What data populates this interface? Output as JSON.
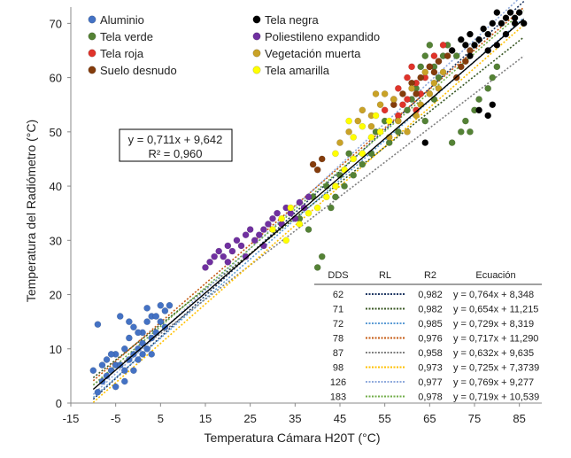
{
  "chart_data": {
    "type": "scatter",
    "xlabel": "Temperatura Cámara H20T (°C)",
    "ylabel": "Temperatura del Radiómetro (°C)",
    "xlim": [
      -15,
      90
    ],
    "ylim": [
      0,
      73
    ],
    "xticks": [
      -15,
      -5,
      5,
      15,
      25,
      35,
      45,
      55,
      65,
      75,
      85
    ],
    "yticks": [
      0,
      10,
      20,
      30,
      40,
      50,
      60,
      70
    ],
    "grid": false,
    "legend_position": "top-left",
    "fit_box": {
      "equation": "y = 0,711x + 9,642",
      "r2": "R² = 0,960",
      "slope": 0.711,
      "intercept": 9.642
    },
    "series": [
      {
        "name": "Aluminio",
        "color": "#4472c4",
        "points": [
          [
            -10,
            6
          ],
          [
            -9,
            14.5
          ],
          [
            -9,
            2
          ],
          [
            -8,
            4
          ],
          [
            -7,
            5
          ],
          [
            -6,
            6
          ],
          [
            -5,
            7
          ],
          [
            -5,
            9
          ],
          [
            -4,
            16
          ],
          [
            -4,
            7
          ],
          [
            -3,
            6
          ],
          [
            -3,
            10
          ],
          [
            -2,
            8
          ],
          [
            -2,
            12
          ],
          [
            -1,
            9
          ],
          [
            -1,
            14
          ],
          [
            0,
            8
          ],
          [
            0,
            10
          ],
          [
            1,
            11
          ],
          [
            1,
            13
          ],
          [
            2,
            15
          ],
          [
            2,
            17.5
          ],
          [
            3,
            12
          ],
          [
            3,
            16
          ],
          [
            4,
            13
          ],
          [
            5,
            15
          ],
          [
            5,
            18
          ],
          [
            6,
            17
          ],
          [
            7,
            18
          ],
          [
            -6,
            9
          ],
          [
            -7,
            8
          ],
          [
            -8,
            7
          ],
          [
            -2,
            15
          ],
          [
            0,
            13
          ],
          [
            1,
            9
          ],
          [
            4,
            16
          ],
          [
            6,
            14
          ],
          [
            -3,
            4
          ],
          [
            -5,
            3
          ],
          [
            -1,
            6
          ],
          [
            2,
            10
          ],
          [
            3,
            9
          ]
        ]
      },
      {
        "name": "Tela verde",
        "color": "#548235",
        "points": [
          [
            36,
            34
          ],
          [
            38,
            32
          ],
          [
            40,
            25
          ],
          [
            41,
            27
          ],
          [
            43,
            36
          ],
          [
            44,
            38
          ],
          [
            46,
            40
          ],
          [
            48,
            42
          ],
          [
            50,
            44
          ],
          [
            52,
            46
          ],
          [
            53,
            50
          ],
          [
            55,
            52
          ],
          [
            56,
            48
          ],
          [
            58,
            50
          ],
          [
            60,
            54
          ],
          [
            61,
            56
          ],
          [
            62,
            58
          ],
          [
            63,
            62
          ],
          [
            64,
            64
          ],
          [
            65,
            66
          ],
          [
            66,
            62
          ],
          [
            67,
            60
          ],
          [
            68,
            64
          ],
          [
            70,
            48
          ],
          [
            72,
            50
          ],
          [
            73,
            52
          ],
          [
            75,
            54
          ],
          [
            76,
            56
          ],
          [
            78,
            58
          ],
          [
            79,
            60
          ],
          [
            80,
            62
          ],
          [
            64,
            52
          ],
          [
            66,
            56
          ],
          [
            69,
            66
          ],
          [
            71,
            64
          ],
          [
            74,
            50
          ],
          [
            45,
            42
          ],
          [
            42,
            40
          ],
          [
            39,
            38
          ],
          [
            47,
            46
          ]
        ]
      },
      {
        "name": "Tela roja",
        "color": "#e0332a",
        "points": [
          [
            55,
            54
          ],
          [
            57,
            56
          ],
          [
            58,
            58
          ],
          [
            59,
            55
          ],
          [
            60,
            60
          ],
          [
            61,
            62
          ],
          [
            62,
            59
          ],
          [
            63,
            57
          ],
          [
            64,
            60
          ],
          [
            65,
            62
          ],
          [
            66,
            64
          ],
          [
            67,
            63
          ],
          [
            68,
            66
          ],
          [
            60,
            56
          ],
          [
            62,
            54
          ],
          [
            58,
            53
          ]
        ]
      },
      {
        "name": "Suelo desnudo",
        "color": "#843c0c",
        "points": [
          [
            39,
            44
          ],
          [
            40,
            43
          ],
          [
            41,
            45
          ],
          [
            57,
            55
          ],
          [
            59,
            57
          ],
          [
            61,
            59
          ],
          [
            63,
            60
          ],
          [
            65,
            62
          ],
          [
            67,
            63
          ],
          [
            69,
            64
          ],
          [
            70,
            65
          ],
          [
            72,
            62
          ],
          [
            73,
            63
          ],
          [
            74,
            65
          ],
          [
            62,
            57
          ],
          [
            66,
            61
          ],
          [
            71,
            60
          ]
        ]
      },
      {
        "name": "Tela negra",
        "color": "#000000",
        "points": [
          [
            64,
            48
          ],
          [
            70,
            65
          ],
          [
            72,
            67
          ],
          [
            74,
            68
          ],
          [
            75,
            66
          ],
          [
            76,
            67
          ],
          [
            77,
            69
          ],
          [
            78,
            68
          ],
          [
            79,
            70
          ],
          [
            80,
            72
          ],
          [
            81,
            70
          ],
          [
            82,
            71
          ],
          [
            83,
            72
          ],
          [
            84,
            71
          ],
          [
            85,
            72
          ],
          [
            78,
            65
          ],
          [
            80,
            66
          ],
          [
            82,
            68
          ],
          [
            84,
            70
          ],
          [
            76,
            54
          ],
          [
            78,
            53
          ],
          [
            79,
            55
          ],
          [
            74,
            64
          ],
          [
            73,
            66
          ],
          [
            86,
            70
          ]
        ]
      },
      {
        "name": "Poliestileno expandido",
        "color": "#7030a0",
        "points": [
          [
            15,
            25
          ],
          [
            16,
            26
          ],
          [
            17,
            27
          ],
          [
            18,
            28
          ],
          [
            19,
            27
          ],
          [
            20,
            29
          ],
          [
            21,
            28
          ],
          [
            22,
            30
          ],
          [
            23,
            29
          ],
          [
            24,
            31
          ],
          [
            25,
            32
          ],
          [
            26,
            30
          ],
          [
            27,
            31
          ],
          [
            28,
            32
          ],
          [
            29,
            33
          ],
          [
            30,
            34
          ],
          [
            31,
            35
          ],
          [
            32,
            33
          ],
          [
            33,
            36
          ],
          [
            34,
            35
          ],
          [
            35,
            34
          ],
          [
            36,
            37
          ],
          [
            37,
            36
          ],
          [
            38,
            38
          ],
          [
            24,
            27
          ],
          [
            20,
            26
          ],
          [
            28,
            29
          ]
        ]
      },
      {
        "name": "Vegetación muerta",
        "color": "#c9a227",
        "points": [
          [
            45,
            48
          ],
          [
            47,
            50
          ],
          [
            49,
            52
          ],
          [
            50,
            54
          ],
          [
            52,
            53
          ],
          [
            54,
            55
          ],
          [
            55,
            57
          ],
          [
            57,
            56
          ],
          [
            58,
            52
          ],
          [
            60,
            50
          ],
          [
            62,
            53
          ],
          [
            63,
            55
          ],
          [
            65,
            57
          ],
          [
            66,
            59
          ],
          [
            68,
            61
          ],
          [
            52,
            51
          ],
          [
            56,
            49
          ],
          [
            61,
            58
          ],
          [
            64,
            61
          ],
          [
            67,
            58
          ],
          [
            53,
            57
          ]
        ]
      },
      {
        "name": "Tela amarilla",
        "color": "#ffff00",
        "points": [
          [
            30,
            32
          ],
          [
            32,
            34
          ],
          [
            33,
            30
          ],
          [
            34,
            36
          ],
          [
            36,
            33
          ],
          [
            38,
            35
          ],
          [
            40,
            36
          ],
          [
            42,
            38
          ],
          [
            44,
            40
          ],
          [
            46,
            43
          ],
          [
            48,
            45
          ],
          [
            50,
            46
          ],
          [
            52,
            49
          ],
          [
            54,
            50
          ],
          [
            56,
            52
          ],
          [
            44,
            46
          ],
          [
            48,
            49
          ],
          [
            50,
            51
          ],
          [
            47,
            52
          ],
          [
            53,
            53
          ]
        ]
      }
    ],
    "fit_table": {
      "headers": [
        "DDS",
        "RL",
        "R2",
        "Ecuación"
      ],
      "rows": [
        {
          "dds": "62",
          "r2": "0,982",
          "equation": "y = 0,764x + 8,348",
          "color": "#203864",
          "slope": 0.764,
          "intercept": 8.348
        },
        {
          "dds": "71",
          "r2": "0,982",
          "equation": "y = 0,654x + 11,215",
          "color": "#385723",
          "slope": 0.654,
          "intercept": 11.215
        },
        {
          "dds": "72",
          "r2": "0,985",
          "equation": "y = 0,729x + 8,319",
          "color": "#5b9bd5",
          "slope": 0.729,
          "intercept": 8.319
        },
        {
          "dds": "78",
          "r2": "0,976",
          "equation": "y = 0,717x + 11,290",
          "color": "#c55a11",
          "slope": 0.717,
          "intercept": 11.29
        },
        {
          "dds": "87",
          "r2": "0,958",
          "equation": "y = 0,632x + 9,635",
          "color": "#7f7f7f",
          "slope": 0.632,
          "intercept": 9.635
        },
        {
          "dds": "98",
          "r2": "0,973",
          "equation": "y = 0,725x + 7,3739",
          "color": "#ffc000",
          "slope": 0.725,
          "intercept": 7.3739
        },
        {
          "dds": "126",
          "r2": "0,977",
          "equation": "y = 0,769x + 9,277",
          "color": "#8faadc",
          "slope": 0.769,
          "intercept": 9.277
        },
        {
          "dds": "183",
          "r2": "0,978",
          "equation": "y = 0,719x + 10,539",
          "color": "#70ad47",
          "slope": 0.719,
          "intercept": 10.539
        }
      ]
    }
  }
}
